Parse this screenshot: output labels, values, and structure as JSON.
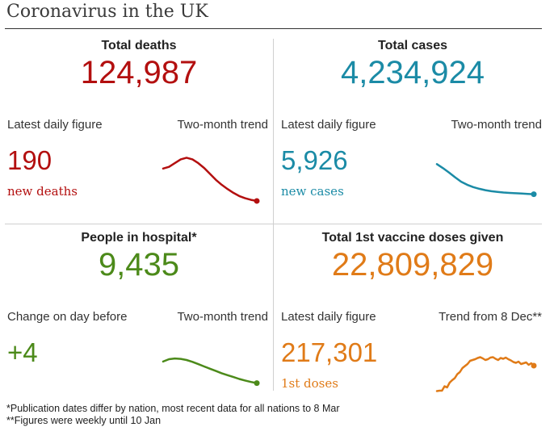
{
  "header": {
    "title": "Coronavirus in the UK"
  },
  "colors": {
    "deaths": "#b30f0f",
    "cases": "#1b8ba6",
    "hospital": "#4c8a1a",
    "vaccine": "#e07b18"
  },
  "panels": {
    "deaths": {
      "title": "Total deaths",
      "total": "124,987",
      "left_label": "Latest daily figure",
      "right_label": "Two-month trend",
      "daily": "190",
      "daily_unit": "new deaths"
    },
    "cases": {
      "title": "Total cases",
      "total": "4,234,924",
      "left_label": "Latest daily figure",
      "right_label": "Two-month trend",
      "daily": "5,926",
      "daily_unit": "new cases"
    },
    "hospital": {
      "title": "People in hospital*",
      "total": "9,435",
      "left_label": "Change on day before",
      "right_label": "Two-month trend",
      "daily": "+4",
      "daily_unit": ""
    },
    "vaccine": {
      "title": "Total 1st vaccine doses given",
      "total": "22,809,829",
      "left_label": "Latest daily figure",
      "right_label": "Trend from 8 Dec**",
      "daily": "217,301",
      "daily_unit": "1st doses"
    }
  },
  "footnotes": [
    "*Publication dates differ by nation, most recent data for all nations to 8 Mar",
    "**Figures were weekly until 10 Jan"
  ],
  "chart_data": [
    {
      "type": "line",
      "name": "deaths-two-month-trend",
      "values": [
        0.75,
        0.78,
        0.85,
        0.92,
        0.95,
        0.92,
        0.85,
        0.76,
        0.65,
        0.54,
        0.45,
        0.37,
        0.3,
        0.24,
        0.2,
        0.17,
        0.15
      ],
      "ylim": [
        0,
        1
      ],
      "end_marker": true
    },
    {
      "type": "line",
      "name": "cases-two-month-trend",
      "values": [
        0.97,
        0.85,
        0.72,
        0.58,
        0.45,
        0.36,
        0.29,
        0.24,
        0.2,
        0.17,
        0.15,
        0.13,
        0.12,
        0.11,
        0.1,
        0.09,
        0.08
      ],
      "ylim": [
        0,
        1
      ],
      "end_marker": true
    },
    {
      "type": "line",
      "name": "hospital-two-month-trend",
      "values": [
        0.62,
        0.68,
        0.7,
        0.69,
        0.66,
        0.61,
        0.55,
        0.49,
        0.43,
        0.37,
        0.31,
        0.26,
        0.21,
        0.16,
        0.12,
        0.08,
        0.05
      ],
      "ylim": [
        0,
        1
      ],
      "end_marker": true
    },
    {
      "type": "line",
      "name": "vaccine-trend-from-8-dec",
      "values": [
        0.03,
        0.04,
        0.04,
        0.15,
        0.12,
        0.24,
        0.3,
        0.35,
        0.45,
        0.5,
        0.6,
        0.65,
        0.7,
        0.78,
        0.8,
        0.82,
        0.85,
        0.87,
        0.84,
        0.8,
        0.82,
        0.86,
        0.87,
        0.83,
        0.8,
        0.85,
        0.83,
        0.86,
        0.82,
        0.79,
        0.75,
        0.73,
        0.76,
        0.7,
        0.72,
        0.74,
        0.68,
        0.72,
        0.66
      ],
      "ylim": [
        0,
        1
      ],
      "end_marker": true
    }
  ]
}
